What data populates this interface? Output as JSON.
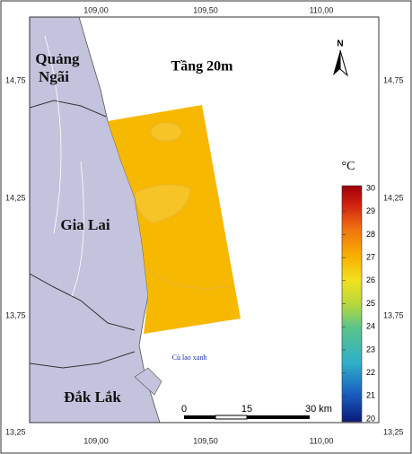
{
  "title": "Tầng 20m",
  "north": "N",
  "lon_labels": [
    "109,00",
    "109,50",
    "110,00"
  ],
  "lat_labels": [
    "14,75",
    "14,25",
    "13,75",
    "13,25"
  ],
  "places": [
    [
      "Quảng",
      "Ngãi"
    ],
    "Gia Lai",
    "Đắk Lắk"
  ],
  "island": "Cù lao xanh",
  "legend": {
    "unit": "°C",
    "ticks": [
      20,
      21,
      22,
      23,
      24,
      25,
      26,
      27,
      28,
      29,
      30
    ]
  },
  "scale_bar": {
    "labels": [
      "0",
      "15",
      "30 km"
    ]
  }
}
